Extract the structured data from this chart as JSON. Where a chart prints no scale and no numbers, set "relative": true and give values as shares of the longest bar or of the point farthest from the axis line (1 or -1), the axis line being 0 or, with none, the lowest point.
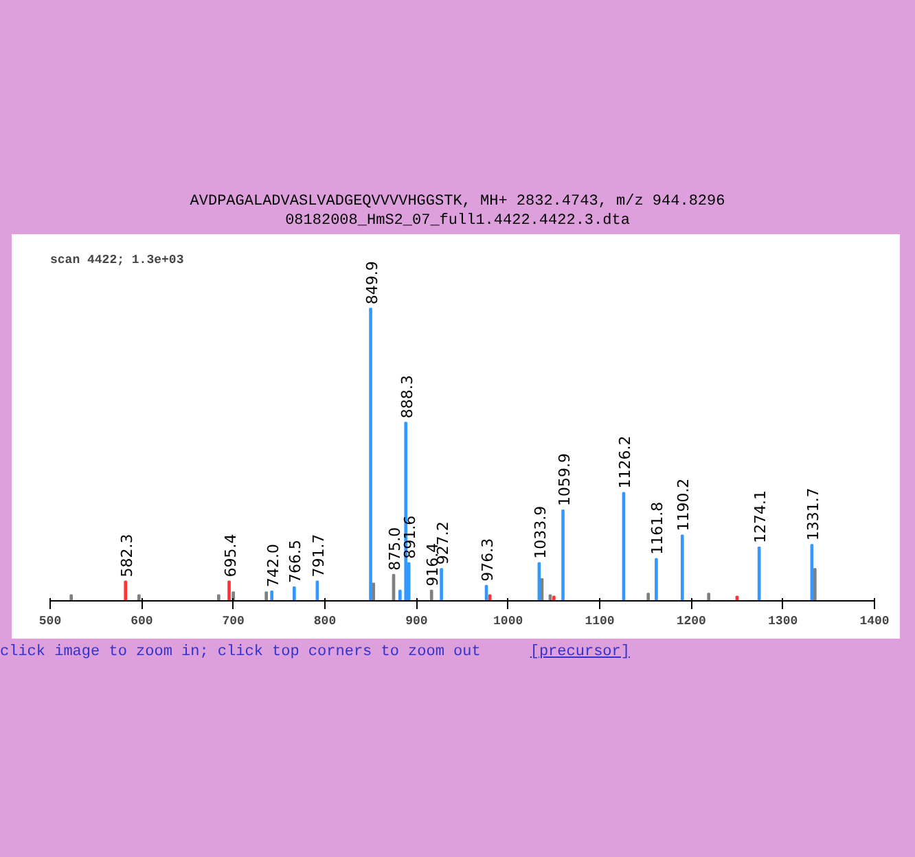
{
  "chart_data": {
    "type": "bar",
    "relative": true,
    "title": "AVDPAGALADVASLVADGEQVVVVHGGSTK, MH+ 2832.4743, m/z 944.8296",
    "subtitle": "08182008_HmS2_07_full1.4422.4422.3.dta",
    "xlim": [
      500,
      1400
    ],
    "xticks": [
      500,
      600,
      700,
      800,
      900,
      1000,
      1100,
      1200,
      1300,
      1400
    ],
    "grid": false,
    "annotations": [
      "scan 4422; 1.3e+03",
      "click image to zoom in; click top corners to zoom out",
      "[precursor]",
      {
        "text": "582.3",
        "x": 582.3,
        "y": 0.067
      },
      {
        "text": "695.4",
        "x": 695.4,
        "y": 0.067
      },
      {
        "text": "742.0",
        "x": 742.0,
        "y": 0.033
      },
      {
        "text": "766.5",
        "x": 766.5,
        "y": 0.047
      },
      {
        "text": "791.7",
        "x": 791.7,
        "y": 0.067
      },
      {
        "text": "849.9",
        "x": 849.9,
        "y": 1
      },
      {
        "text": "875.0",
        "x": 875.0,
        "y": 0.09
      },
      {
        "text": "888.3",
        "x": 888.3,
        "y": 0.61
      },
      {
        "text": "891.6",
        "x": 891.6,
        "y": 0.13
      },
      {
        "text": "916.4",
        "x": 916.4,
        "y": 0.036
      },
      {
        "text": "927.2",
        "x": 927.2,
        "y": 0.11
      },
      {
        "text": "976.3",
        "x": 976.3,
        "y": 0.052
      },
      {
        "text": "1033.9",
        "x": 1033.9,
        "y": 0.13
      },
      {
        "text": "1059.9",
        "x": 1059.9,
        "y": 0.31
      },
      {
        "text": "1126.2",
        "x": 1126.2,
        "y": 0.37
      },
      {
        "text": "1161.8",
        "x": 1161.8,
        "y": 0.144
      },
      {
        "text": "1190.2",
        "x": 1190.2,
        "y": 0.224
      },
      {
        "text": "1274.1",
        "x": 1274.1,
        "y": 0.183
      },
      {
        "text": "1331.7",
        "x": 1331.7,
        "y": 0.192
      }
    ],
    "series": [
      {
        "color": "#808080",
        "x": [
          523,
          597,
          684,
          700,
          736,
          853,
          875.0,
          916.4,
          1037,
          1046,
          1153,
          1219,
          1335
        ],
        "values": [
          0.02,
          0.02,
          0.02,
          0.03,
          0.03,
          0.06,
          0.09,
          0.036,
          0.075,
          0.02,
          0.025,
          0.025,
          0.11
        ]
      },
      {
        "color": "#ff3333",
        "x": [
          582.3,
          695.4,
          980,
          1050,
          1250
        ],
        "values": [
          0.067,
          0.067,
          0.02,
          0.015,
          0.015
        ]
      },
      {
        "color": "#3399ff",
        "x": [
          742.0,
          766.5,
          791.7,
          849.9,
          882,
          888.3,
          891.6,
          927.2,
          976.3,
          1033.9,
          1059.9,
          1126.2,
          1161.8,
          1190.2,
          1274.1,
          1331.7
        ],
        "values": [
          0.033,
          0.047,
          0.067,
          1,
          0.036,
          0.61,
          0.13,
          0.11,
          0.052,
          0.13,
          0.31,
          0.37,
          0.144,
          0.224,
          0.183,
          0.192
        ]
      }
    ]
  }
}
